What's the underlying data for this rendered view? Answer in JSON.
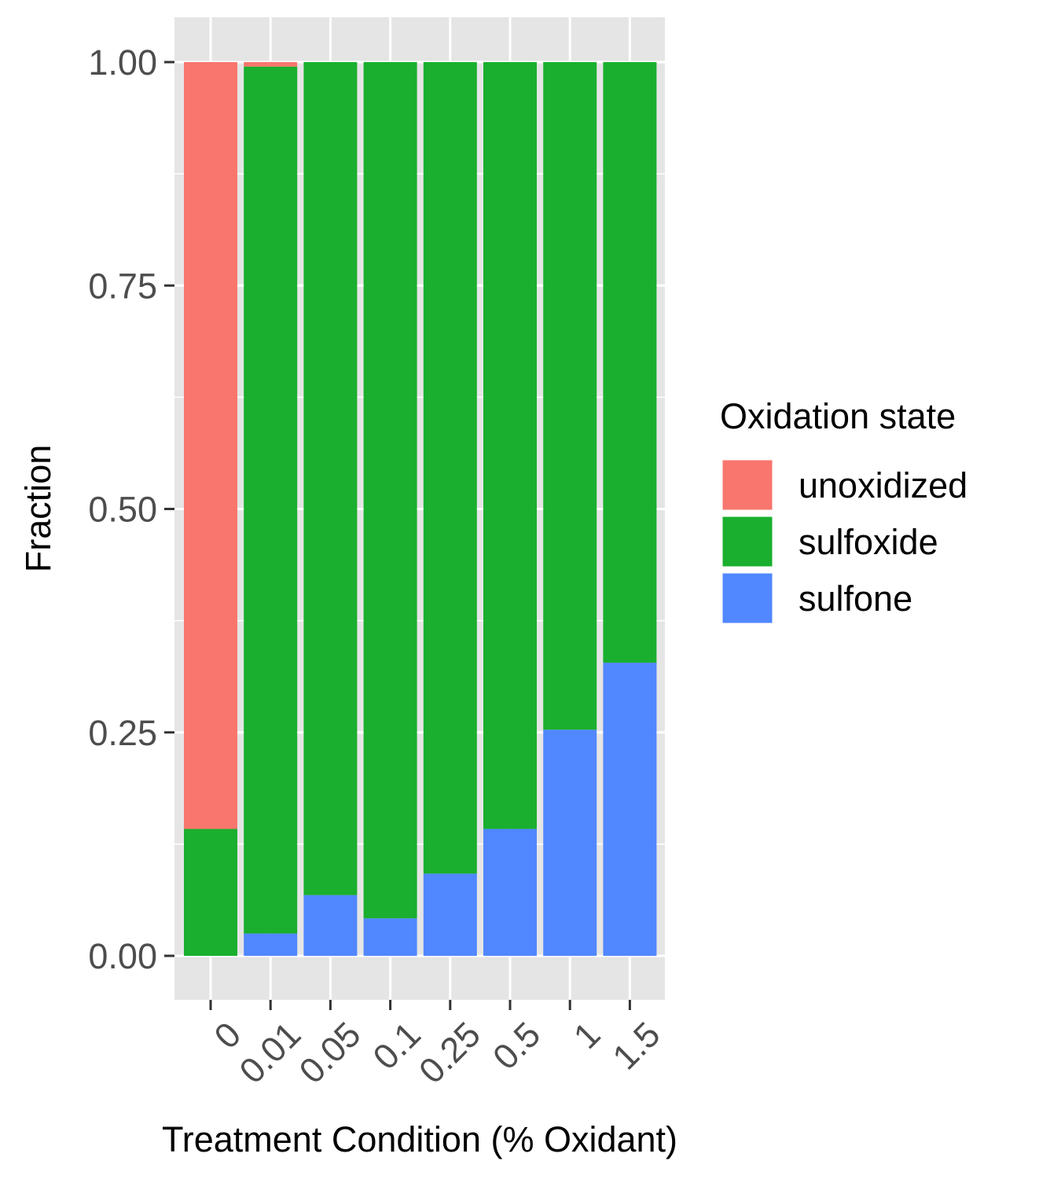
{
  "chart_data": {
    "type": "bar",
    "stacked": true,
    "xlabel": "Treatment Condition (% Oxidant)",
    "ylabel": "Fraction",
    "ylim": [
      0,
      1
    ],
    "y_ticks": [
      "0.00",
      "0.25",
      "0.50",
      "0.75",
      "1.00"
    ],
    "y_tick_values": [
      0,
      0.25,
      0.5,
      0.75,
      1.0
    ],
    "categories": [
      "0",
      "0.01",
      "0.05",
      "0.1",
      "0.25",
      "0.5",
      "1",
      "1.5"
    ],
    "series": [
      {
        "name": "unoxidized",
        "color": "#F8766D",
        "values": [
          0.858,
          0.005,
          0,
          0,
          0,
          0,
          0,
          0
        ]
      },
      {
        "name": "sulfoxide",
        "color": "#1AAF2E",
        "values": [
          0.142,
          0.97,
          0.932,
          0.958,
          0.908,
          0.858,
          0.747,
          0.672
        ]
      },
      {
        "name": "sulfone",
        "color": "#5187FF",
        "values": [
          0,
          0.025,
          0.068,
          0.042,
          0.092,
          0.142,
          0.253,
          0.328
        ]
      }
    ],
    "legend": {
      "title": "Oxidation state",
      "position": "right",
      "entries": [
        "unoxidized",
        "sulfoxide",
        "sulfone"
      ]
    },
    "grid": true,
    "panel_background": "#E5E5E5",
    "grid_color": "#FFFFFF"
  }
}
